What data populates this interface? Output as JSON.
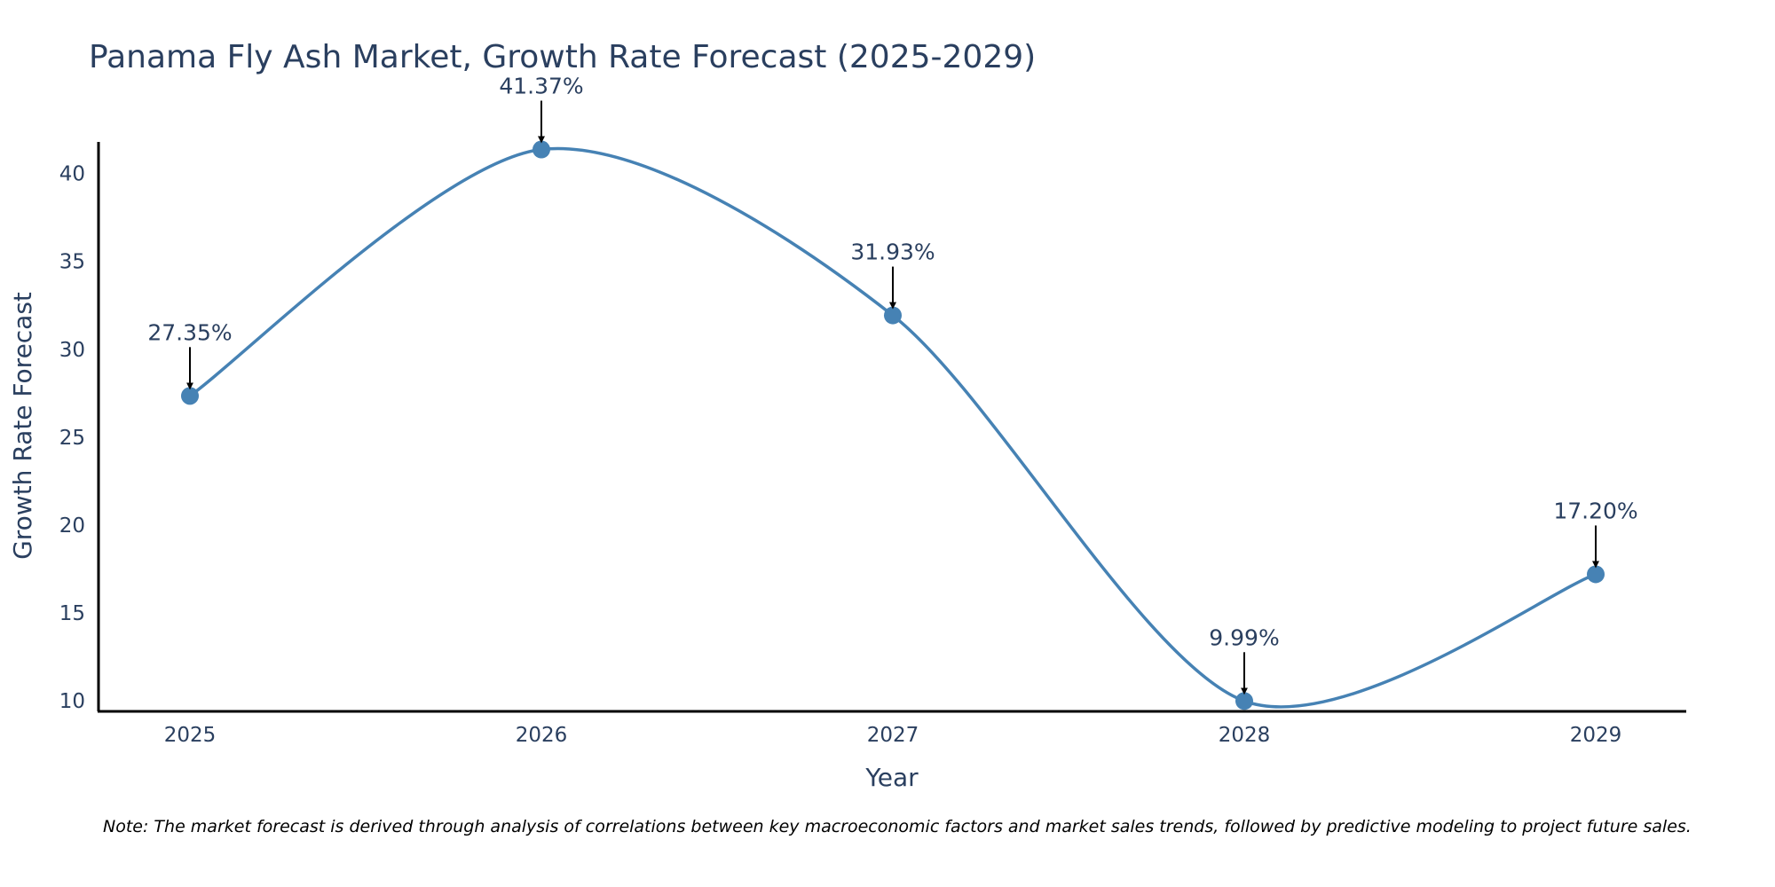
{
  "chart_data": {
    "type": "line",
    "title": "Panama Fly Ash Market, Growth Rate Forecast (2025-2029)",
    "xlabel": "Year",
    "ylabel": "Growth Rate Forecast",
    "categories": [
      "2025",
      "2026",
      "2027",
      "2028",
      "2029"
    ],
    "values": [
      27.35,
      41.37,
      31.93,
      9.99,
      17.2
    ],
    "data_labels": [
      "27.35%",
      "41.37%",
      "31.93%",
      "9.99%",
      "17.20%"
    ],
    "y_ticks": [
      10,
      15,
      20,
      25,
      30,
      35,
      40
    ],
    "ylim": [
      9.4,
      41.8
    ],
    "line_shape": "spline",
    "grid": false,
    "legend": "none",
    "colors": {
      "line": "#4682b4",
      "marker": "#4682b4",
      "text": "#2a3f5f",
      "axis": "#000000",
      "arrow": "#000000"
    }
  },
  "note": "Note: The market forecast is derived through analysis of correlations between key macroeconomic factors and market sales trends, followed by predictive modeling to project future sales."
}
